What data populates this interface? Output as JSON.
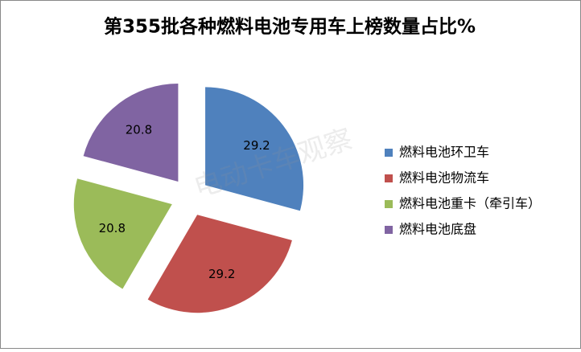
{
  "chart_data": {
    "type": "pie",
    "title": "第355批各种燃料电池专用车上榜数量占比%",
    "watermark": "电动卡车观察",
    "categories": [
      "燃料电池环卫车",
      "燃料电池物流车",
      "燃料电池重卡（牵引车）",
      "燃料电池底盘"
    ],
    "values": [
      29.2,
      29.2,
      20.8,
      20.8
    ],
    "colors": [
      "#4f81bd",
      "#c0504d",
      "#9bbb59",
      "#8064a2"
    ],
    "legend": "right"
  }
}
